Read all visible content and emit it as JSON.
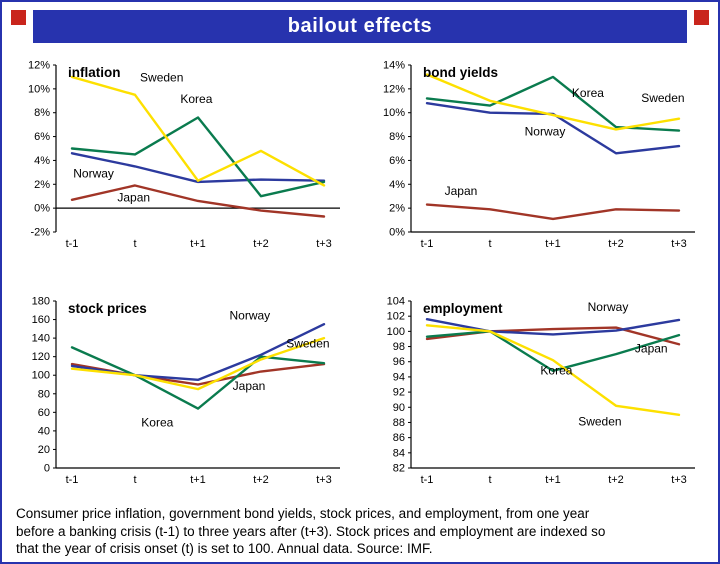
{
  "header": {
    "title": "bailout effects"
  },
  "palette": {
    "header_bg": "#2733ae",
    "border": "#2733ae",
    "corner_red": "#c9251c",
    "series": {
      "Sweden": "#fde000",
      "Korea": "#0a7b4e",
      "Norway": "#2c3a9e",
      "Japan": "#a13527"
    }
  },
  "footer": {
    "lines": [
      "Consumer price inflation, government bond yields, stock prices, and employment, from one year",
      "before a banking crisis (t-1) to three years after (t+3). Stock prices and employment are indexed so",
      "that the year of crisis onset (t) is set to 100. Annual data. Source: IMF."
    ]
  },
  "chart_data": [
    {
      "type": "line",
      "title": "inflation",
      "categories": [
        "t-1",
        "t",
        "t+1",
        "t+2",
        "t+3"
      ],
      "ylim": [
        -2,
        12
      ],
      "ytick_step": 2,
      "y_suffix": "%",
      "zero_line": true,
      "baseline": false,
      "legend": "inline-labels",
      "grid": false,
      "series": [
        {
          "name": "Sweden",
          "values": [
            11,
            9.5,
            2.3,
            4.8,
            1.9
          ]
        },
        {
          "name": "Korea",
          "values": [
            5,
            4.5,
            7.6,
            1.0,
            2.2
          ]
        },
        {
          "name": "Norway",
          "values": [
            4.6,
            3.5,
            2.2,
            2.4,
            2.3
          ]
        },
        {
          "name": "Japan",
          "values": [
            0.7,
            1.9,
            0.6,
            -0.2,
            -0.7
          ]
        }
      ],
      "annotations": [
        {
          "text": "Sweden",
          "x": 1.08,
          "y": 10.6
        },
        {
          "text": "Korea",
          "x": 1.72,
          "y": 8.8
        },
        {
          "text": "Norway",
          "x": 0.02,
          "y": 2.55
        },
        {
          "text": "Japan",
          "x": 0.72,
          "y": 0.55
        }
      ]
    },
    {
      "type": "line",
      "title": "bond yields",
      "categories": [
        "t-1",
        "t",
        "t+1",
        "t+2",
        "t+3"
      ],
      "ylim": [
        0,
        14
      ],
      "ytick_step": 2,
      "y_suffix": "%",
      "zero_line": false,
      "baseline": true,
      "legend": "inline-labels",
      "grid": false,
      "series": [
        {
          "name": "Sweden",
          "values": [
            13.2,
            11.0,
            9.8,
            8.6,
            9.5
          ]
        },
        {
          "name": "Korea",
          "values": [
            11.2,
            10.6,
            13.0,
            8.8,
            8.5
          ]
        },
        {
          "name": "Norway",
          "values": [
            10.8,
            10.0,
            9.9,
            6.6,
            7.2
          ]
        },
        {
          "name": "Japan",
          "values": [
            2.3,
            1.9,
            1.1,
            1.9,
            1.8
          ]
        }
      ],
      "annotations": [
        {
          "text": "Korea",
          "x": 2.3,
          "y": 11.3
        },
        {
          "text": "Sweden",
          "x": 3.4,
          "y": 10.9
        },
        {
          "text": "Norway",
          "x": 1.55,
          "y": 8.1
        },
        {
          "text": "Japan",
          "x": 0.28,
          "y": 3.1
        }
      ]
    },
    {
      "type": "line",
      "title": "stock prices",
      "categories": [
        "t-1",
        "t",
        "t+1",
        "t+2",
        "t+3"
      ],
      "ylim": [
        0,
        180
      ],
      "ytick_step": 20,
      "y_suffix": "",
      "zero_line": false,
      "baseline": true,
      "legend": "inline-labels",
      "grid": false,
      "series": [
        {
          "name": "Sweden",
          "values": [
            107,
            100,
            85,
            117,
            140
          ]
        },
        {
          "name": "Korea",
          "values": [
            130,
            100,
            64,
            120,
            113
          ]
        },
        {
          "name": "Norway",
          "values": [
            110,
            100,
            95,
            122,
            155
          ]
        },
        {
          "name": "Japan",
          "values": [
            112,
            100,
            90,
            104,
            112
          ]
        }
      ],
      "annotations": [
        {
          "text": "Norway",
          "x": 2.5,
          "y": 160
        },
        {
          "text": "Sweden",
          "x": 3.4,
          "y": 130
        },
        {
          "text": "Korea",
          "x": 1.1,
          "y": 45
        },
        {
          "text": "Japan",
          "x": 2.55,
          "y": 84
        }
      ]
    },
    {
      "type": "line",
      "title": "employment",
      "categories": [
        "t-1",
        "t",
        "t+1",
        "t+2",
        "t+3"
      ],
      "ylim": [
        82,
        104
      ],
      "ytick_step": 2,
      "y_suffix": "",
      "zero_line": false,
      "baseline": true,
      "legend": "inline-labels",
      "grid": false,
      "series": [
        {
          "name": "Sweden",
          "values": [
            100.8,
            100,
            96.2,
            90.2,
            89.0
          ]
        },
        {
          "name": "Korea",
          "values": [
            99.3,
            100,
            94.8,
            97.0,
            99.5
          ]
        },
        {
          "name": "Norway",
          "values": [
            101.6,
            100,
            99.6,
            100.1,
            101.5
          ]
        },
        {
          "name": "Japan",
          "values": [
            99.0,
            100,
            100.3,
            100.5,
            98.3
          ]
        }
      ],
      "annotations": [
        {
          "text": "Norway",
          "x": 2.55,
          "y": 102.7
        },
        {
          "text": "Japan",
          "x": 3.3,
          "y": 97.2
        },
        {
          "text": "Korea",
          "x": 1.8,
          "y": 94.3
        },
        {
          "text": "Sweden",
          "x": 2.4,
          "y": 87.6
        }
      ]
    }
  ]
}
